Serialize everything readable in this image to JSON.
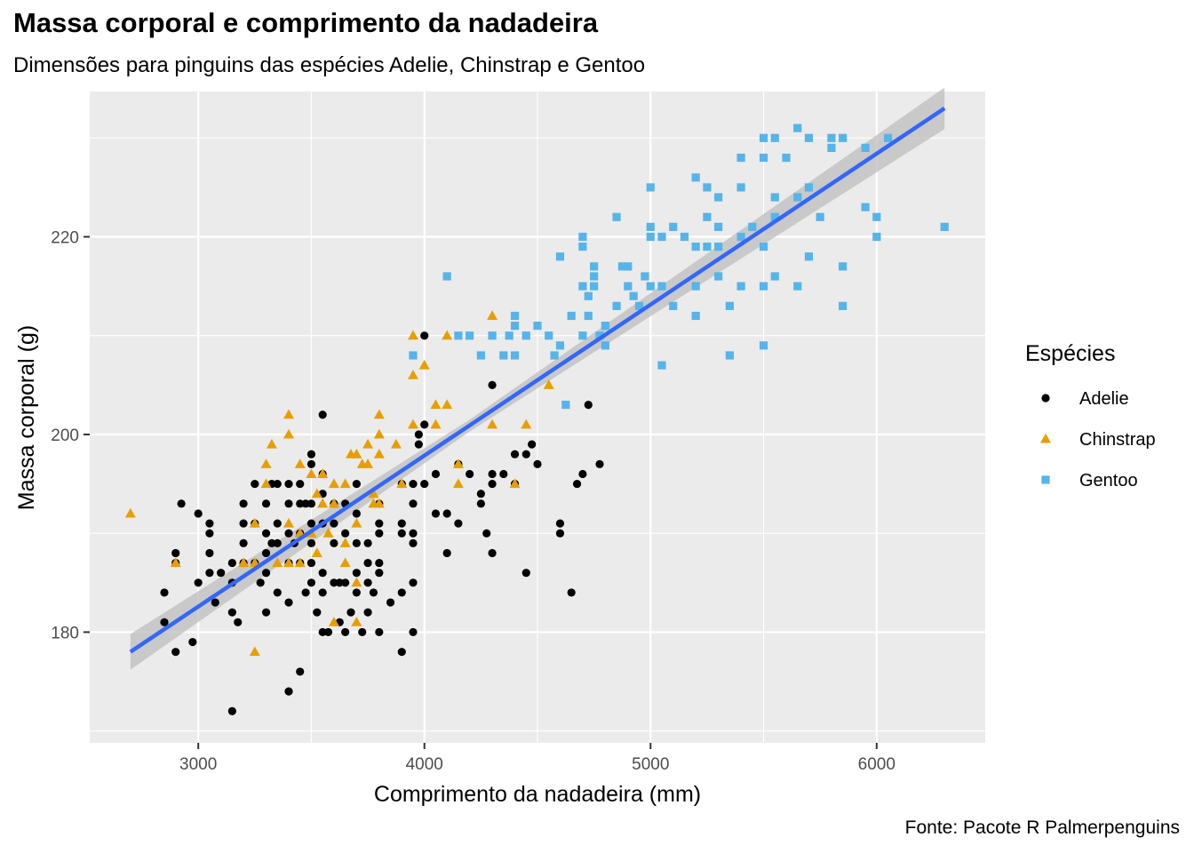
{
  "title": "Massa corporal e comprimento da nadadeira",
  "subtitle": "Dimensões para pinguins das espécies Adelie, Chinstrap e Gentoo",
  "caption": "Fonte: Pacote R Palmerpenguins",
  "colors": {
    "panel_background": "#ebebeb",
    "gridline": "#ffffff",
    "regression_line": "#3366ff",
    "confidence_band": "#bdbdbd"
  },
  "chart_data": {
    "type": "scatter",
    "xlabel": "Comprimento da nadadeira (mm)",
    "ylabel": "Massa corporal (g)",
    "xlim": [
      2520,
      6480
    ],
    "ylim": [
      168.8,
      234.7
    ],
    "x_ticks": [
      3000,
      4000,
      5000,
      6000
    ],
    "y_ticks": [
      180,
      200,
      220
    ],
    "x_tick_labels": [
      "3000",
      "4000",
      "5000",
      "6000"
    ],
    "y_tick_labels": [
      "180",
      "200",
      "220"
    ],
    "grid": true,
    "legend": {
      "title": "Espécies",
      "placement": "right",
      "entries": [
        {
          "label": "Adelie",
          "color": "#000000",
          "shape": "circle"
        },
        {
          "label": "Chinstrap",
          "color": "#e69f00",
          "shape": "triangle"
        },
        {
          "label": "Gentoo",
          "color": "#56b4e9",
          "shape": "square"
        }
      ]
    },
    "series": [
      {
        "name": "Adelie",
        "color": "#000000",
        "shape": "circle",
        "points": [
          [
            2850,
            181
          ],
          [
            2850,
            184
          ],
          [
            2900,
            178
          ],
          [
            2900,
            187
          ],
          [
            2900,
            188
          ],
          [
            2925,
            193
          ],
          [
            2975,
            179
          ],
          [
            3000,
            185
          ],
          [
            3000,
            192
          ],
          [
            3050,
            186
          ],
          [
            3050,
            188
          ],
          [
            3050,
            190
          ],
          [
            3050,
            191
          ],
          [
            3075,
            183
          ],
          [
            3100,
            186
          ],
          [
            3150,
            172
          ],
          [
            3150,
            182
          ],
          [
            3150,
            185
          ],
          [
            3150,
            187
          ],
          [
            3175,
            181
          ],
          [
            3200,
            187
          ],
          [
            3200,
            189
          ],
          [
            3200,
            191
          ],
          [
            3200,
            193
          ],
          [
            3250,
            187
          ],
          [
            3250,
            191
          ],
          [
            3250,
            195
          ],
          [
            3275,
            185
          ],
          [
            3300,
            182
          ],
          [
            3300,
            186
          ],
          [
            3300,
            188
          ],
          [
            3300,
            190
          ],
          [
            3300,
            193
          ],
          [
            3325,
            189
          ],
          [
            3325,
            195
          ],
          [
            3350,
            184
          ],
          [
            3350,
            189
          ],
          [
            3350,
            191
          ],
          [
            3350,
            195
          ],
          [
            3400,
            174
          ],
          [
            3400,
            183
          ],
          [
            3400,
            187
          ],
          [
            3400,
            190
          ],
          [
            3400,
            193
          ],
          [
            3400,
            195
          ],
          [
            3425,
            189
          ],
          [
            3450,
            176
          ],
          [
            3450,
            187
          ],
          [
            3450,
            190
          ],
          [
            3450,
            193
          ],
          [
            3450,
            195
          ],
          [
            3475,
            184
          ],
          [
            3475,
            193
          ],
          [
            3500,
            185
          ],
          [
            3500,
            187
          ],
          [
            3500,
            189
          ],
          [
            3500,
            191
          ],
          [
            3500,
            193
          ],
          [
            3500,
            197
          ],
          [
            3500,
            198
          ],
          [
            3525,
            182
          ],
          [
            3550,
            180
          ],
          [
            3550,
            184
          ],
          [
            3550,
            186
          ],
          [
            3550,
            191
          ],
          [
            3550,
            194
          ],
          [
            3550,
            196
          ],
          [
            3550,
            202
          ],
          [
            3575,
            180
          ],
          [
            3600,
            185
          ],
          [
            3600,
            189
          ],
          [
            3600,
            191
          ],
          [
            3600,
            193
          ],
          [
            3625,
            181
          ],
          [
            3625,
            185
          ],
          [
            3650,
            180
          ],
          [
            3650,
            185
          ],
          [
            3650,
            190
          ],
          [
            3650,
            193
          ],
          [
            3675,
            182
          ],
          [
            3700,
            184
          ],
          [
            3700,
            186
          ],
          [
            3700,
            189
          ],
          [
            3700,
            192
          ],
          [
            3700,
            195
          ],
          [
            3725,
            180
          ],
          [
            3750,
            182
          ],
          [
            3750,
            185
          ],
          [
            3750,
            187
          ],
          [
            3750,
            189
          ],
          [
            3775,
            184
          ],
          [
            3800,
            180
          ],
          [
            3800,
            186
          ],
          [
            3800,
            187
          ],
          [
            3800,
            190
          ],
          [
            3800,
            191
          ],
          [
            3800,
            193
          ],
          [
            3850,
            183
          ],
          [
            3900,
            178
          ],
          [
            3900,
            184
          ],
          [
            3900,
            190
          ],
          [
            3900,
            191
          ],
          [
            3900,
            195
          ],
          [
            3950,
            180
          ],
          [
            3950,
            185
          ],
          [
            3950,
            189
          ],
          [
            3950,
            190
          ],
          [
            3950,
            193
          ],
          [
            3950,
            195
          ],
          [
            3975,
            200
          ],
          [
            3975,
            199
          ],
          [
            4000,
            195
          ],
          [
            4000,
            201
          ],
          [
            4000,
            210
          ],
          [
            4050,
            192
          ],
          [
            4050,
            196
          ],
          [
            4100,
            188
          ],
          [
            4100,
            192
          ],
          [
            4150,
            191
          ],
          [
            4150,
            197
          ],
          [
            4200,
            196
          ],
          [
            4250,
            193
          ],
          [
            4250,
            194
          ],
          [
            4275,
            190
          ],
          [
            4300,
            188
          ],
          [
            4300,
            195
          ],
          [
            4300,
            196
          ],
          [
            4300,
            205
          ],
          [
            4350,
            196
          ],
          [
            4400,
            198
          ],
          [
            4400,
            195
          ],
          [
            4450,
            186
          ],
          [
            4450,
            198
          ],
          [
            4475,
            199
          ],
          [
            4500,
            197
          ],
          [
            4600,
            190
          ],
          [
            4600,
            191
          ],
          [
            4650,
            184
          ],
          [
            4675,
            195
          ],
          [
            4700,
            196
          ],
          [
            4725,
            203
          ],
          [
            4775,
            197
          ]
        ]
      },
      {
        "name": "Chinstrap",
        "color": "#e69f00",
        "shape": "triangle",
        "points": [
          [
            2700,
            192
          ],
          [
            2900,
            187
          ],
          [
            3200,
            187
          ],
          [
            3250,
            178
          ],
          [
            3250,
            187
          ],
          [
            3250,
            191
          ],
          [
            3300,
            195
          ],
          [
            3300,
            197
          ],
          [
            3325,
            199
          ],
          [
            3350,
            187
          ],
          [
            3400,
            187
          ],
          [
            3400,
            191
          ],
          [
            3400,
            200
          ],
          [
            3400,
            202
          ],
          [
            3450,
            187
          ],
          [
            3450,
            190
          ],
          [
            3450,
            197
          ],
          [
            3500,
            190
          ],
          [
            3500,
            196
          ],
          [
            3525,
            188
          ],
          [
            3525,
            194
          ],
          [
            3550,
            193
          ],
          [
            3550,
            196
          ],
          [
            3575,
            190
          ],
          [
            3600,
            181
          ],
          [
            3600,
            193
          ],
          [
            3600,
            195
          ],
          [
            3650,
            187
          ],
          [
            3650,
            189
          ],
          [
            3650,
            195
          ],
          [
            3675,
            198
          ],
          [
            3700,
            181
          ],
          [
            3700,
            185
          ],
          [
            3700,
            191
          ],
          [
            3700,
            198
          ],
          [
            3725,
            197
          ],
          [
            3750,
            197
          ],
          [
            3750,
            199
          ],
          [
            3775,
            193
          ],
          [
            3775,
            194
          ],
          [
            3800,
            193
          ],
          [
            3800,
            198
          ],
          [
            3800,
            200
          ],
          [
            3800,
            202
          ],
          [
            3875,
            199
          ],
          [
            3900,
            195
          ],
          [
            3950,
            201
          ],
          [
            3950,
            206
          ],
          [
            3950,
            210
          ],
          [
            4000,
            207
          ],
          [
            4050,
            201
          ],
          [
            4050,
            203
          ],
          [
            4100,
            203
          ],
          [
            4100,
            210
          ],
          [
            4150,
            197
          ],
          [
            4150,
            195
          ],
          [
            4300,
            201
          ],
          [
            4300,
            212
          ],
          [
            4400,
            195
          ],
          [
            4450,
            201
          ],
          [
            4550,
            205
          ]
        ]
      },
      {
        "name": "Gentoo",
        "color": "#56b4e9",
        "shape": "square",
        "points": [
          [
            3950,
            208
          ],
          [
            4100,
            216
          ],
          [
            4150,
            210
          ],
          [
            4200,
            210
          ],
          [
            4250,
            208
          ],
          [
            4300,
            210
          ],
          [
            4350,
            208
          ],
          [
            4375,
            210
          ],
          [
            4400,
            208
          ],
          [
            4400,
            211
          ],
          [
            4400,
            212
          ],
          [
            4450,
            210
          ],
          [
            4500,
            211
          ],
          [
            4550,
            210
          ],
          [
            4575,
            208
          ],
          [
            4600,
            209
          ],
          [
            4600,
            218
          ],
          [
            4625,
            203
          ],
          [
            4650,
            212
          ],
          [
            4700,
            210
          ],
          [
            4700,
            215
          ],
          [
            4700,
            219
          ],
          [
            4700,
            220
          ],
          [
            4725,
            214
          ],
          [
            4725,
            212
          ],
          [
            4750,
            215
          ],
          [
            4750,
            216
          ],
          [
            4750,
            217
          ],
          [
            4775,
            210
          ],
          [
            4800,
            211
          ],
          [
            4800,
            209
          ],
          [
            4850,
            213
          ],
          [
            4850,
            222
          ],
          [
            4875,
            217
          ],
          [
            4900,
            215
          ],
          [
            4900,
            217
          ],
          [
            4925,
            214
          ],
          [
            4950,
            213
          ],
          [
            4975,
            216
          ],
          [
            5000,
            215
          ],
          [
            5000,
            220
          ],
          [
            5000,
            221
          ],
          [
            5000,
            225
          ],
          [
            5050,
            207
          ],
          [
            5050,
            215
          ],
          [
            5050,
            220
          ],
          [
            5100,
            213
          ],
          [
            5100,
            221
          ],
          [
            5150,
            220
          ],
          [
            5200,
            212
          ],
          [
            5200,
            215
          ],
          [
            5200,
            219
          ],
          [
            5200,
            226
          ],
          [
            5250,
            219
          ],
          [
            5250,
            222
          ],
          [
            5250,
            225
          ],
          [
            5300,
            216
          ],
          [
            5300,
            219
          ],
          [
            5300,
            221
          ],
          [
            5300,
            224
          ],
          [
            5350,
            208
          ],
          [
            5350,
            213
          ],
          [
            5400,
            215
          ],
          [
            5400,
            220
          ],
          [
            5400,
            225
          ],
          [
            5400,
            228
          ],
          [
            5450,
            221
          ],
          [
            5500,
            209
          ],
          [
            5500,
            215
          ],
          [
            5500,
            219
          ],
          [
            5500,
            228
          ],
          [
            5500,
            230
          ],
          [
            5550,
            216
          ],
          [
            5550,
            222
          ],
          [
            5550,
            224
          ],
          [
            5550,
            230
          ],
          [
            5600,
            228
          ],
          [
            5650,
            215
          ],
          [
            5650,
            224
          ],
          [
            5650,
            231
          ],
          [
            5700,
            218
          ],
          [
            5700,
            225
          ],
          [
            5700,
            230
          ],
          [
            5750,
            222
          ],
          [
            5800,
            229
          ],
          [
            5800,
            230
          ],
          [
            5850,
            213
          ],
          [
            5850,
            217
          ],
          [
            5850,
            230
          ],
          [
            5950,
            223
          ],
          [
            5950,
            229
          ],
          [
            6000,
            220
          ],
          [
            6000,
            222
          ],
          [
            6050,
            230
          ],
          [
            6300,
            221
          ]
        ]
      }
    ],
    "regression": {
      "method": "lm",
      "x_range": [
        2700,
        6300
      ],
      "y_at_x_start": 178.0,
      "y_at_x_end": 233.0,
      "confidence_band": [
        {
          "x": 2700,
          "lower": 176.2,
          "upper": 179.8
        },
        {
          "x": 4200,
          "lower": 200.3,
          "upper": 201.5
        },
        {
          "x": 6300,
          "lower": 230.9,
          "upper": 235.1
        }
      ]
    }
  }
}
